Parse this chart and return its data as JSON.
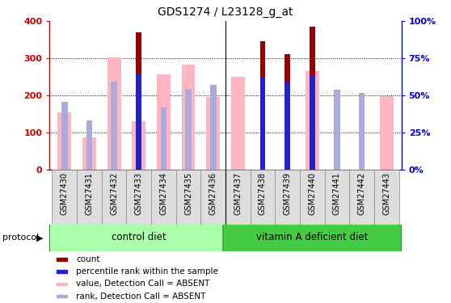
{
  "title": "GDS1274 / L23128_g_at",
  "samples": [
    "GSM27430",
    "GSM27431",
    "GSM27432",
    "GSM27433",
    "GSM27434",
    "GSM27435",
    "GSM27436",
    "GSM27437",
    "GSM27438",
    "GSM27439",
    "GSM27440",
    "GSM27441",
    "GSM27442",
    "GSM27443"
  ],
  "count_values": [
    0,
    0,
    0,
    370,
    0,
    0,
    0,
    0,
    346,
    312,
    385,
    0,
    0,
    0
  ],
  "percentile_values": [
    0,
    0,
    0,
    258,
    0,
    0,
    0,
    0,
    248,
    238,
    253,
    0,
    0,
    0
  ],
  "absent_value": [
    155,
    88,
    303,
    130,
    257,
    282,
    197,
    250,
    0,
    0,
    265,
    0,
    0,
    198
  ],
  "absent_rank": [
    182,
    132,
    238,
    0,
    168,
    218,
    229,
    0,
    0,
    0,
    0,
    215,
    207,
    0
  ],
  "ylim": [
    0,
    400
  ],
  "y2lim": [
    0,
    100
  ],
  "yticks": [
    0,
    100,
    200,
    300,
    400
  ],
  "ytick_labels": [
    "0",
    "100",
    "200",
    "300",
    "400"
  ],
  "y2ticks": [
    0,
    25,
    50,
    75,
    100
  ],
  "y2tick_labels": [
    "0%",
    "25%",
    "50%",
    "75%",
    "100%"
  ],
  "groups": [
    {
      "label": "control diet",
      "n_samples": 7
    },
    {
      "label": "vitamin A deficient diet",
      "n_samples": 7
    }
  ],
  "group_fill_colors": [
    "#AAFFAA",
    "#44CC44"
  ],
  "group_edge_color": "#228B22",
  "protocol_label": "protocol",
  "bar_color_count": "#990000",
  "bar_color_percentile": "#2222CC",
  "bar_color_absent_value": "#FFB6C1",
  "bar_color_absent_rank": "#AAAADD",
  "legend_items": [
    {
      "label": "count",
      "color": "#990000"
    },
    {
      "label": "percentile rank within the sample",
      "color": "#2222CC"
    },
    {
      "label": "value, Detection Call = ABSENT",
      "color": "#FFB6C1"
    },
    {
      "label": "rank, Detection Call = ABSENT",
      "color": "#AAAADD"
    }
  ],
  "figsize": [
    5.58,
    3.75
  ],
  "dpi": 100,
  "title_fontsize": 10,
  "axis_color_left": "#CC0000",
  "axis_color_right": "#0000CC",
  "tick_fontsize": 7,
  "group_fontsize": 8.5,
  "legend_fontsize": 7.5,
  "protocol_fontsize": 8
}
